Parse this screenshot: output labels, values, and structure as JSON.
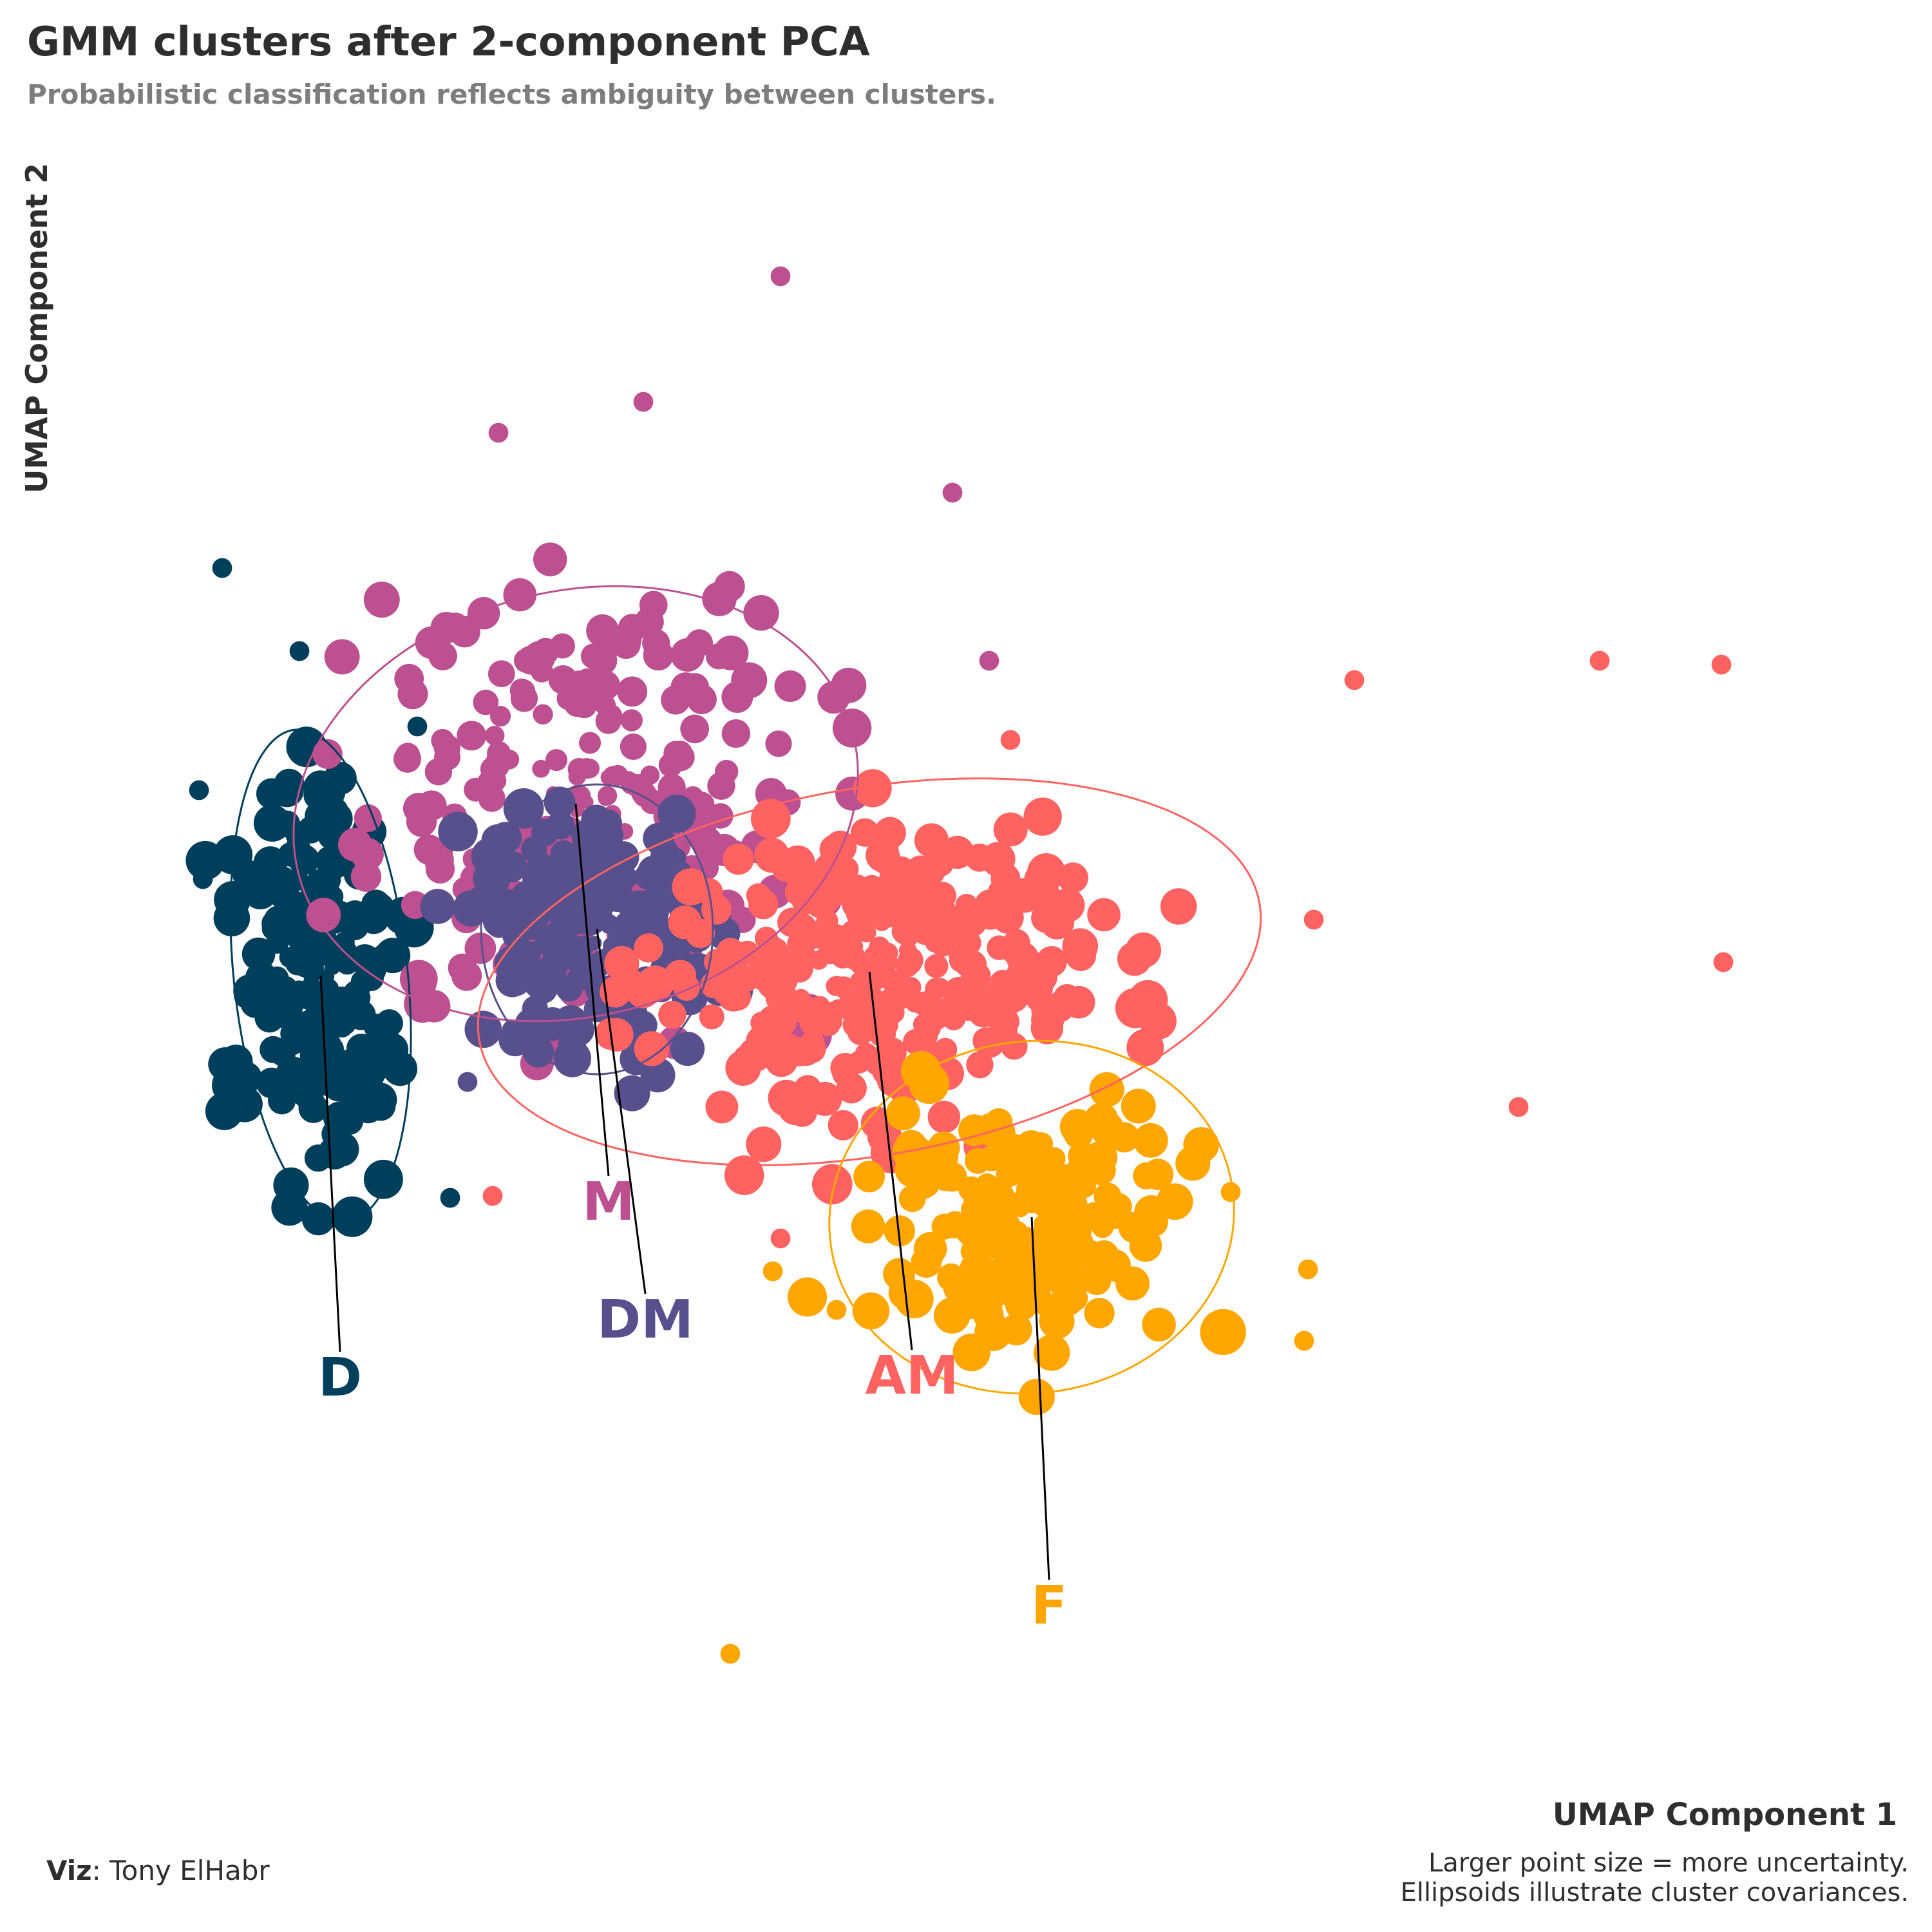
{
  "title": "GMM clusters after 2-component PCA",
  "subtitle": "Probabilistic classification reflects ambiguity between clusters.",
  "caption": {
    "viz_label": "Viz",
    "viz_sep": ": ",
    "author": "Tony ElHabr",
    "note_line1": "Larger point size = more uncertainty.",
    "note_line2": "Ellipsoids illustrate cluster covariances."
  },
  "chart_data": {
    "type": "scatter",
    "title": "GMM clusters after 2-component PCA",
    "subtitle": "Probabilistic classification reflects ambiguity between clusters.",
    "xlabel": "UMAP Component 1",
    "ylabel": "UMAP Component 2",
    "grid": false,
    "legend": "none",
    "axis_ticks": "none",
    "xlim": [
      0,
      1000
    ],
    "ylim": [
      0,
      1000
    ],
    "size_encodes": "uncertainty",
    "clusters": [
      {
        "name": "D",
        "color": "#003f5c",
        "center": [
          166,
          495
        ],
        "ellipse": {
          "rx": 45,
          "ry": 128,
          "angle": -6
        },
        "label_position": [
          176,
          287
        ],
        "spread": [
          40,
          95
        ],
        "n_points": 230,
        "sample_points": [
          [
            115,
            706
          ],
          [
            155,
            663
          ],
          [
            216,
            624
          ],
          [
            103,
            591
          ],
          [
            105,
            545
          ],
          [
            233,
            380
          ]
        ]
      },
      {
        "name": "M",
        "color": "#bc5090",
        "center": [
          298,
          584
        ],
        "ellipse": {
          "rx": 148,
          "ry": 110,
          "angle": -14
        },
        "label_position": [
          315,
          378
        ],
        "spread": [
          120,
          110
        ],
        "n_points": 240,
        "sample_points": [
          [
            404,
            857
          ],
          [
            333,
            792
          ],
          [
            258,
            776
          ],
          [
            512,
            658
          ],
          [
            493,
            745
          ],
          [
            225,
            478
          ]
        ]
      },
      {
        "name": "DM",
        "color": "#58508d",
        "center": [
          309,
          519
        ],
        "ellipse": {
          "rx": 60,
          "ry": 75,
          "angle": 0
        },
        "label_position": [
          334,
          317
        ],
        "spread": [
          55,
          60
        ],
        "n_points": 220,
        "sample_points": [
          [
            350,
            556
          ],
          [
            265,
            467
          ],
          [
            242,
            440
          ],
          [
            390,
            450
          ]
        ]
      },
      {
        "name": "AM",
        "color": "#ff6361",
        "center": [
          450,
          497
        ],
        "ellipse": {
          "rx": 205,
          "ry": 95,
          "angle": -10
        },
        "label_position": [
          472,
          288
        ],
        "spread": [
          110,
          70
        ],
        "n_points": 330,
        "sample_points": [
          [
            891,
            656
          ],
          [
            828,
            658
          ],
          [
            701,
            648
          ],
          [
            892,
            502
          ],
          [
            786,
            427
          ],
          [
            404,
            359
          ],
          [
            255,
            381
          ],
          [
            523,
            617
          ],
          [
            680,
            524
          ]
        ]
      },
      {
        "name": "F",
        "color": "#ffa600",
        "center": [
          534,
          370
        ],
        "ellipse": {
          "rx": 105,
          "ry": 91,
          "angle": -8
        },
        "label_position": [
          543,
          169
        ],
        "spread": [
          70,
          55
        ],
        "n_points": 230,
        "sample_points": [
          [
            378,
            144
          ],
          [
            637,
            383
          ],
          [
            677,
            343
          ],
          [
            675,
            306
          ],
          [
            400,
            342
          ],
          [
            433,
            322
          ]
        ]
      }
    ]
  }
}
